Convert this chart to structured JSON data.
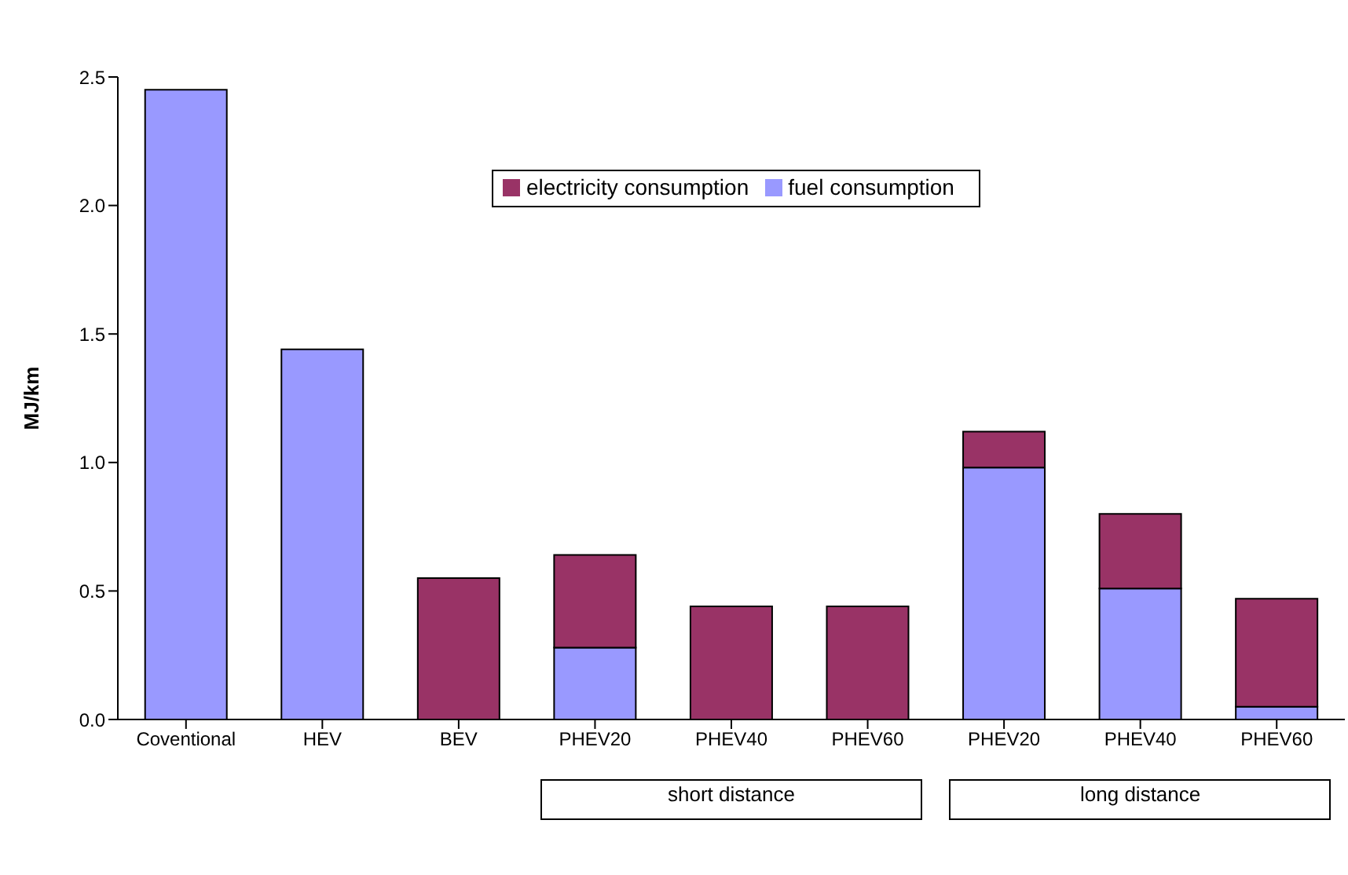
{
  "chart_data": {
    "type": "bar",
    "ylabel": "MJ/km",
    "categories": [
      "Coventional",
      "HEV",
      "BEV",
      "PHEV20",
      "PHEV40",
      "PHEV60",
      "PHEV20",
      "PHEV40",
      "PHEV60"
    ],
    "series": [
      {
        "name": "fuel consumption",
        "color": "#9999ff",
        "values": [
          2.45,
          1.44,
          null,
          0.28,
          null,
          null,
          0.98,
          0.51,
          0.05
        ]
      },
      {
        "name": "electricity consumption",
        "color": "#993366",
        "values": [
          null,
          null,
          0.55,
          0.36,
          0.44,
          0.44,
          0.14,
          0.29,
          0.42
        ]
      }
    ],
    "stacked": true,
    "ylim": [
      0,
      2.5
    ],
    "yticks": [
      {
        "value": 0,
        "label": "0.0"
      },
      {
        "value": 0.5,
        "label": "0.5"
      },
      {
        "value": 1,
        "label": "1.0"
      },
      {
        "value": 1.5,
        "label": "1.5"
      },
      {
        "value": 2,
        "label": "2.0"
      },
      {
        "value": 2.5,
        "label": "2.5"
      }
    ],
    "grid": false,
    "legend": "top",
    "annotations": [
      "short distance",
      "long distance"
    ]
  }
}
